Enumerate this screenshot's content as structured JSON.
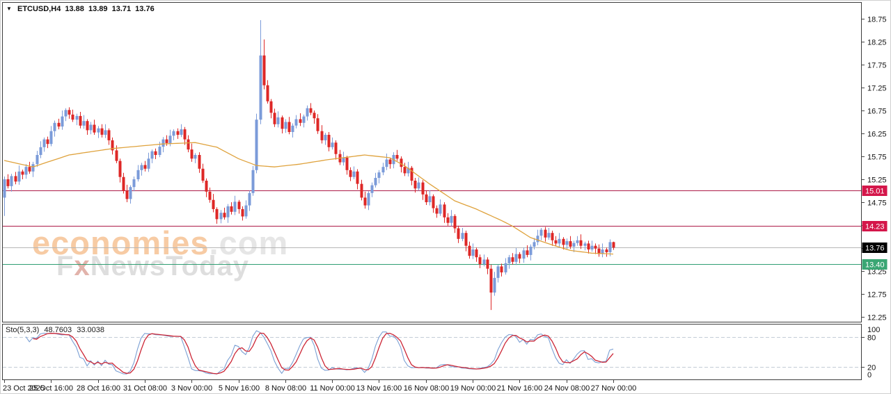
{
  "header": {
    "dropdown_icon": "▼",
    "symbol": "ETCUSD,H4",
    "open": "13.88",
    "high": "13.89",
    "low": "13.71",
    "close": "13.76"
  },
  "watermark": {
    "line1_main": "economies",
    "line1_suffix": ".com",
    "line2_f": "F",
    "line2_x": "x",
    "line2_rest": "NewsToday"
  },
  "indicator": {
    "label": "Sto(5,3,3)",
    "k_value": "48.7603",
    "d_value": "33.0038",
    "levels": [
      80,
      20
    ],
    "scale_labels": [
      "100",
      "80",
      "20",
      "0"
    ]
  },
  "axes": {
    "price_ticks": [
      "18.75",
      "18.25",
      "17.75",
      "17.25",
      "16.75",
      "16.25",
      "15.75",
      "15.25",
      "14.75",
      "14.25",
      "13.75",
      "13.25",
      "12.75",
      "12.25"
    ],
    "time_ticks": [
      "23 Oct 2025",
      "25 Oct 16:00",
      "28 Oct 16:00",
      "31 Oct 08:00",
      "3 Nov 00:00",
      "5 Nov 16:00",
      "8 Nov 08:00",
      "11 Nov 00:00",
      "13 Nov 16:00",
      "16 Nov 08:00",
      "19 Nov 00:00",
      "21 Nov 16:00",
      "24 Nov 08:00",
      "27 Nov 00:00"
    ]
  },
  "levels": [
    {
      "price": 15.01,
      "label": "15.01",
      "line_color": "#ad1a47",
      "box_color": "#d4164a"
    },
    {
      "price": 14.23,
      "label": "14.23",
      "line_color": "#ad1a47",
      "box_color": "#d4164a"
    },
    {
      "price": 13.4,
      "label": "13.40",
      "line_color": "#2f9e72",
      "box_color": "#3aa674"
    }
  ],
  "current_price": {
    "price": 13.76,
    "label": "13.76",
    "line_color": "#b6b6b6",
    "box_color": "#000000"
  },
  "chart_data": {
    "type": "candlestick",
    "symbol": "ETCUSD",
    "timeframe": "H4",
    "title": "ETCUSD,H4 13.88 13.89 13.71 13.76",
    "price_axis": {
      "top_tick": 18.75,
      "bottom_tick": 12.25,
      "step": 0.5
    },
    "first_open": 14.85,
    "closes": [
      15.25,
      15.1,
      15.32,
      15.2,
      15.42,
      15.35,
      15.52,
      15.42,
      15.58,
      15.78,
      15.95,
      16.12,
      16.02,
      16.3,
      16.48,
      16.4,
      16.62,
      16.76,
      16.66,
      16.55,
      16.63,
      16.42,
      16.52,
      16.32,
      16.44,
      16.27,
      16.36,
      16.22,
      16.32,
      16.1,
      15.88,
      15.65,
      15.3,
      15.0,
      14.82,
      15.08,
      15.25,
      15.45,
      15.56,
      15.48,
      15.7,
      15.86,
      15.78,
      15.96,
      16.12,
      16.04,
      16.2,
      16.3,
      16.22,
      16.34,
      16.12,
      15.9,
      15.7,
      15.78,
      15.48,
      15.22,
      14.98,
      14.8,
      14.6,
      14.38,
      14.52,
      14.42,
      14.66,
      14.54,
      14.76,
      14.6,
      14.44,
      14.68,
      14.95,
      15.45,
      16.55,
      17.95,
      17.3,
      16.95,
      16.7,
      16.45,
      16.6,
      16.35,
      16.5,
      16.28,
      16.42,
      16.56,
      16.48,
      16.62,
      16.8,
      16.7,
      16.58,
      16.3,
      16.1,
      16.22,
      15.95,
      16.05,
      15.8,
      15.62,
      15.72,
      15.45,
      15.3,
      15.42,
      15.15,
      14.85,
      14.68,
      14.95,
      15.12,
      15.28,
      15.4,
      15.52,
      15.68,
      15.58,
      15.78,
      15.7,
      15.52,
      15.38,
      15.5,
      15.22,
      15.05,
      15.18,
      14.92,
      14.75,
      14.88,
      14.62,
      14.5,
      14.7,
      14.42,
      14.3,
      14.45,
      14.18,
      13.95,
      14.08,
      13.8,
      13.58,
      13.72,
      13.55,
      13.4,
      13.5,
      13.3,
      12.78,
      13.1,
      13.35,
      13.22,
      13.42,
      13.55,
      13.45,
      13.62,
      13.52,
      13.7,
      13.6,
      13.78,
      13.88,
      14.02,
      14.15,
      13.98,
      14.08,
      13.92,
      13.85,
      13.95,
      13.82,
      13.9,
      13.78,
      13.86,
      13.92,
      13.8,
      13.85,
      13.72,
      13.8,
      13.74,
      13.62,
      13.72,
      13.66,
      13.88,
      13.76
    ],
    "wick_pattern": [
      [
        0.06,
        0.09
      ],
      [
        0.11,
        0.05
      ],
      [
        0.05,
        0.12
      ],
      [
        0.09,
        0.06
      ],
      [
        0.13,
        0.07
      ],
      [
        0.04,
        0.1
      ]
    ],
    "wick_overrides": {
      "0": {
        "low": 14.45
      },
      "71": {
        "high": 18.72
      },
      "72": {
        "high": 18.3
      },
      "135": {
        "low": 12.4
      },
      "169": {
        "high": 13.89,
        "low": 13.71
      }
    },
    "ma_waypoints": [
      [
        0,
        15.66
      ],
      [
        8,
        15.52
      ],
      [
        18,
        15.78
      ],
      [
        30,
        15.92
      ],
      [
        44,
        16.02
      ],
      [
        53,
        16.05
      ],
      [
        59,
        15.95
      ],
      [
        65,
        15.7
      ],
      [
        70,
        15.55
      ],
      [
        75,
        15.52
      ],
      [
        82,
        15.58
      ],
      [
        90,
        15.68
      ],
      [
        100,
        15.78
      ],
      [
        107,
        15.72
      ],
      [
        111,
        15.55
      ],
      [
        118,
        15.15
      ],
      [
        125,
        14.78
      ],
      [
        131,
        14.6
      ],
      [
        138,
        14.35
      ],
      [
        141,
        14.23
      ],
      [
        146,
        13.98
      ],
      [
        152,
        13.82
      ],
      [
        157,
        13.7
      ],
      [
        163,
        13.64
      ],
      [
        169,
        13.62
      ]
    ],
    "stochastic": {
      "period": 5,
      "slowing": 3,
      "d_period": 3,
      "last_k": 48.7603,
      "last_d": 33.0038
    },
    "colors": {
      "bull": "#7b9bd9",
      "bear": "#de2726",
      "ma": "#dfa23c",
      "stoch_k": "#7ba0d4",
      "stoch_d": "#cc2636",
      "stoch_level_dash": "#c3ccd6",
      "frame": "#3c3c3c",
      "axis_text": "#111111"
    }
  }
}
